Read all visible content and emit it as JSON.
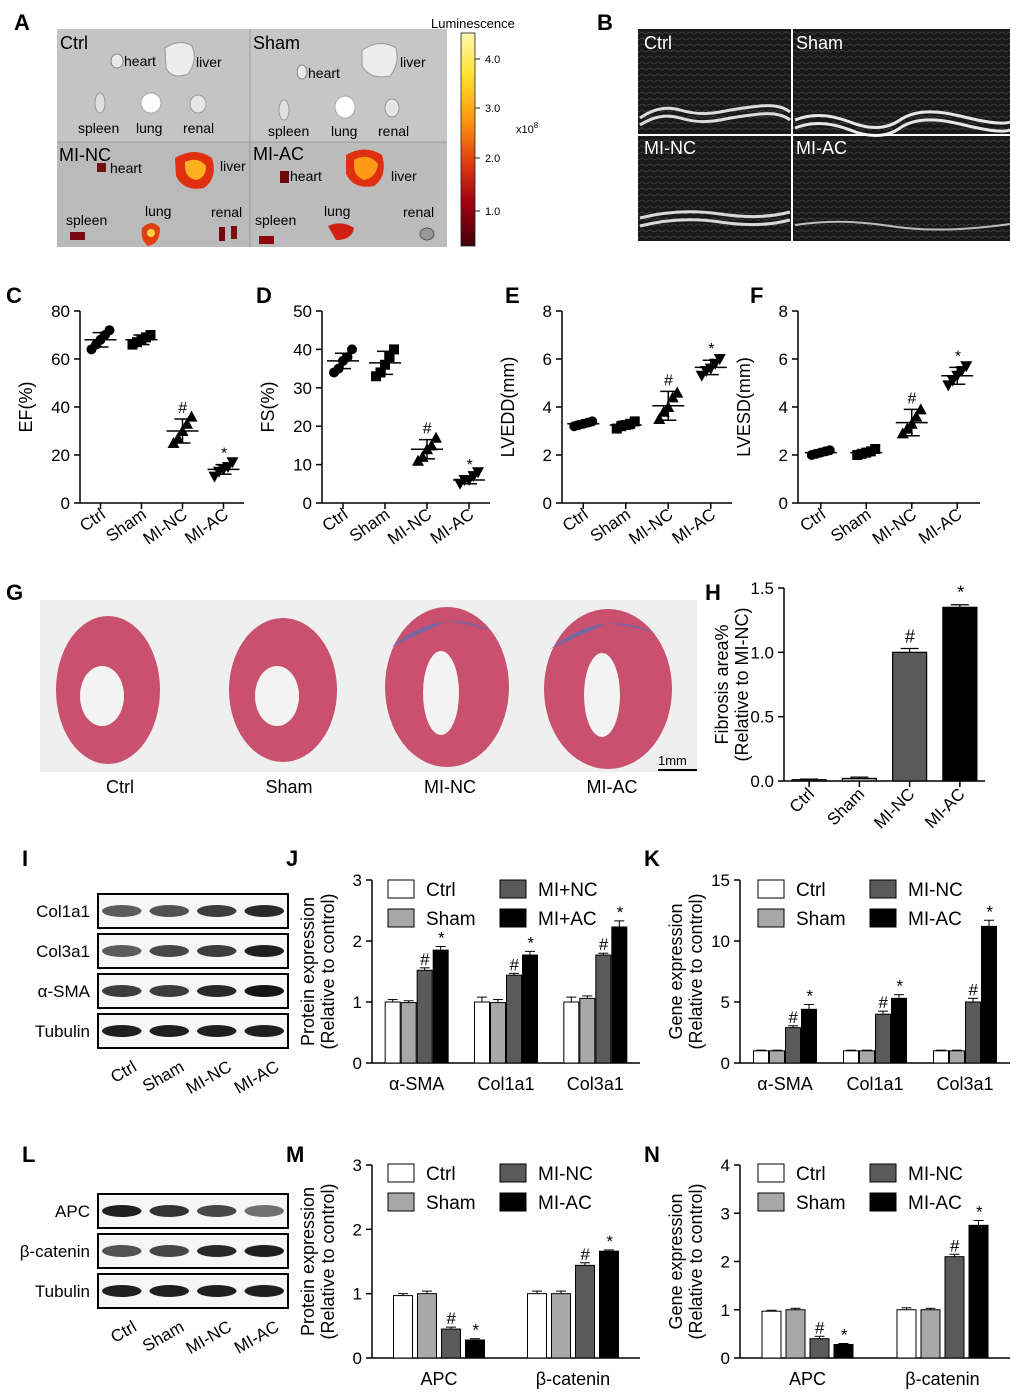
{
  "panel_letters": {
    "A": "A",
    "B": "B",
    "C": "C",
    "D": "D",
    "E": "E",
    "F": "F",
    "G": "G",
    "H": "H",
    "I": "I",
    "J": "J",
    "K": "K",
    "L": "L",
    "M": "M",
    "N": "N"
  },
  "panelA": {
    "quadrants": [
      {
        "title": "Ctrl",
        "organs": [
          "heart",
          "liver",
          "spleen",
          "lung",
          "renal"
        ]
      },
      {
        "title": "Sham",
        "organs": [
          "heart",
          "liver",
          "spleen",
          "lung",
          "renal"
        ]
      },
      {
        "title": "MI-NC",
        "organs": [
          "heart",
          "liver",
          "spleen",
          "lung",
          "renal"
        ]
      },
      {
        "title": "MI-AC",
        "organs": [
          "heart",
          "liver",
          "spleen",
          "lung",
          "renal"
        ]
      }
    ],
    "colorbar": {
      "title": "Luminescence",
      "ticks": [
        "4.0",
        "3.0",
        "2.0",
        "1.0"
      ],
      "multiplier": "x10",
      "exponent": "8",
      "colors": [
        "#fff8b0",
        "#ffe030",
        "#ff9a10",
        "#e04010",
        "#a00010",
        "#400008"
      ]
    }
  },
  "panelB": {
    "labels": [
      "Ctrl",
      "Sham",
      "MI-NC",
      "MI-AC"
    ]
  },
  "panelG": {
    "labels": [
      "Ctrl",
      "Sham",
      "MI-NC",
      "MI-AC"
    ],
    "scalebar": "1mm"
  },
  "colors": {
    "ctrl": "#ffffff",
    "sham": "#a8a8a8",
    "nc": "#5a5a5a",
    "ac": "#000000",
    "tissue": "#c9506e",
    "fibrosis": "#5a6fb8"
  },
  "chart_data": [
    {
      "id": "C",
      "type": "scatter",
      "ylabel": "EF(%)",
      "ylim": [
        0,
        80
      ],
      "yticks": [
        "0",
        "20",
        "40",
        "60",
        "80"
      ],
      "categories": [
        "Ctrl",
        "Sham",
        "MI-NC",
        "MI-AC"
      ],
      "means": [
        68,
        68,
        30,
        14
      ],
      "sd": [
        3,
        2,
        5,
        2
      ],
      "markers": [
        "circle",
        "square",
        "triangle",
        "triangle-down"
      ],
      "sig": [
        "",
        "",
        "#",
        "*"
      ],
      "points": [
        [
          64,
          66,
          68,
          70,
          72
        ],
        [
          66,
          67,
          68,
          69,
          70
        ],
        [
          25,
          27,
          30,
          33,
          36
        ],
        [
          11,
          13,
          14,
          15,
          17
        ]
      ]
    },
    {
      "id": "D",
      "type": "scatter",
      "ylabel": "FS(%)",
      "ylim": [
        0,
        50
      ],
      "yticks": [
        "0",
        "10",
        "20",
        "30",
        "40",
        "50"
      ],
      "categories": [
        "Ctrl",
        "Sham",
        "MI-NC",
        "MI-AC"
      ],
      "means": [
        37,
        36.5,
        14,
        6
      ],
      "sd": [
        2,
        3,
        2.5,
        1
      ],
      "markers": [
        "circle",
        "square",
        "triangle",
        "triangle-down"
      ],
      "sig": [
        "",
        "",
        "#",
        "*"
      ],
      "points": [
        [
          34,
          35,
          37,
          38,
          40
        ],
        [
          33,
          34,
          36,
          38,
          40
        ],
        [
          11,
          12,
          14,
          15,
          17
        ],
        [
          5,
          6,
          6,
          7,
          8
        ]
      ]
    },
    {
      "id": "E",
      "type": "scatter",
      "ylabel": "LVEDD(mm)",
      "ylim": [
        0,
        8
      ],
      "yticks": [
        "0",
        "2",
        "4",
        "6",
        "8"
      ],
      "categories": [
        "Ctrl",
        "Sham",
        "MI-NC",
        "MI-AC"
      ],
      "means": [
        3.3,
        3.25,
        4.05,
        5.65
      ],
      "sd": [
        0.1,
        0.15,
        0.6,
        0.3
      ],
      "markers": [
        "circle",
        "square",
        "triangle",
        "triangle-down"
      ],
      "sig": [
        "",
        "",
        "#",
        "*"
      ],
      "points": [
        [
          3.2,
          3.25,
          3.3,
          3.35,
          3.4
        ],
        [
          3.1,
          3.2,
          3.25,
          3.3,
          3.4
        ],
        [
          3.5,
          3.8,
          4.0,
          4.4,
          4.6
        ],
        [
          5.3,
          5.5,
          5.6,
          5.8,
          6.0
        ]
      ]
    },
    {
      "id": "F",
      "type": "scatter",
      "ylabel": "LVESD(mm)",
      "ylim": [
        0,
        8
      ],
      "yticks": [
        "0",
        "2",
        "4",
        "6",
        "8"
      ],
      "categories": [
        "Ctrl",
        "Sham",
        "MI-NC",
        "MI-AC"
      ],
      "means": [
        2.1,
        2.1,
        3.35,
        5.3
      ],
      "sd": [
        0.1,
        0.1,
        0.55,
        0.35
      ],
      "markers": [
        "circle",
        "square",
        "triangle",
        "triangle-down"
      ],
      "sig": [
        "",
        "",
        "#",
        "*"
      ],
      "points": [
        [
          2.0,
          2.05,
          2.1,
          2.15,
          2.2
        ],
        [
          2.0,
          2.05,
          2.1,
          2.15,
          2.25
        ],
        [
          2.9,
          3.1,
          3.3,
          3.6,
          3.9
        ],
        [
          4.9,
          5.1,
          5.3,
          5.5,
          5.7
        ]
      ]
    },
    {
      "id": "H",
      "type": "bar",
      "ylabel": "Fibrosis area%",
      "ylabel2": "(Relative to MI-NC)",
      "ylim": [
        0,
        1.5
      ],
      "yticks": [
        "0.0",
        "0.5",
        "1.0",
        "1.5"
      ],
      "categories": [
        "Ctrl",
        "Sham",
        "MI-NC",
        "MI-AC"
      ],
      "values": [
        0.01,
        0.02,
        1.0,
        1.35
      ],
      "errors": [
        0.005,
        0.01,
        0.03,
        0.02
      ],
      "sig": [
        "",
        "",
        "#",
        "*"
      ]
    },
    {
      "id": "J",
      "type": "bar",
      "ylabel": "Protein expression",
      "ylabel2": "(Relative to control)",
      "ylim": [
        0,
        3
      ],
      "yticks": [
        "0",
        "1",
        "2",
        "3"
      ],
      "categories": [
        "α-SMA",
        "Col1a1",
        "Col3a1"
      ],
      "series": [
        {
          "name": "Ctrl",
          "values": [
            1.0,
            1.0,
            1.0
          ],
          "errors": [
            0.04,
            0.08,
            0.08
          ],
          "sig": [
            "",
            "",
            ""
          ]
        },
        {
          "name": "Sham",
          "values": [
            0.99,
            0.99,
            1.06
          ],
          "errors": [
            0.03,
            0.05,
            0.04
          ],
          "sig": [
            "",
            "",
            ""
          ]
        },
        {
          "name": "MI+NC",
          "values": [
            1.52,
            1.44,
            1.77
          ],
          "errors": [
            0.04,
            0.03,
            0.03
          ],
          "sig": [
            "#",
            "#",
            "#"
          ]
        },
        {
          "name": "MI+AC",
          "values": [
            1.85,
            1.77,
            2.23
          ],
          "errors": [
            0.06,
            0.06,
            0.1
          ],
          "sig": [
            "*",
            "*",
            "*"
          ]
        }
      ]
    },
    {
      "id": "K",
      "type": "bar",
      "ylabel": "Gene expression",
      "ylabel2": "(Relative to control)",
      "ylim": [
        0,
        15
      ],
      "yticks": [
        "0",
        "5",
        "10",
        "15"
      ],
      "categories": [
        "α-SMA",
        "Col1a1",
        "Col3a1"
      ],
      "series": [
        {
          "name": "Ctrl",
          "values": [
            1.0,
            1.0,
            1.0
          ],
          "errors": [
            0.05,
            0.05,
            0.05
          ],
          "sig": [
            "",
            "",
            ""
          ]
        },
        {
          "name": "Sham",
          "values": [
            1.0,
            1.0,
            1.0
          ],
          "errors": [
            0.05,
            0.05,
            0.05
          ],
          "sig": [
            "",
            "",
            ""
          ]
        },
        {
          "name": "MI-NC",
          "values": [
            2.9,
            4.0,
            5.0
          ],
          "errors": [
            0.15,
            0.25,
            0.3
          ],
          "sig": [
            "#",
            "#",
            "#"
          ]
        },
        {
          "name": "MI-AC",
          "values": [
            4.4,
            5.3,
            11.2
          ],
          "errors": [
            0.4,
            0.3,
            0.5
          ],
          "sig": [
            "*",
            "*",
            "*"
          ]
        }
      ]
    },
    {
      "id": "M",
      "type": "bar",
      "ylabel": "Protein expression",
      "ylabel2": "(Relative to control)",
      "ylim": [
        0,
        3
      ],
      "yticks": [
        "0",
        "1",
        "2",
        "3"
      ],
      "categories": [
        "APC",
        "β-catenin"
      ],
      "series": [
        {
          "name": "Ctrl",
          "values": [
            0.97,
            1.0
          ],
          "errors": [
            0.03,
            0.04
          ],
          "sig": [
            "",
            ""
          ]
        },
        {
          "name": "Sham",
          "values": [
            1.0,
            1.0
          ],
          "errors": [
            0.04,
            0.04
          ],
          "sig": [
            "",
            ""
          ]
        },
        {
          "name": "MI-NC",
          "values": [
            0.45,
            1.44
          ],
          "errors": [
            0.03,
            0.04
          ],
          "sig": [
            "#",
            "#"
          ]
        },
        {
          "name": "MI-AC",
          "values": [
            0.28,
            1.66
          ],
          "errors": [
            0.02,
            0.02
          ],
          "sig": [
            "*",
            "*"
          ]
        }
      ]
    },
    {
      "id": "N",
      "type": "bar",
      "ylabel": "Gene expression",
      "ylabel2": "(Relative to control)",
      "ylim": [
        0,
        4
      ],
      "yticks": [
        "0",
        "1",
        "2",
        "3",
        "4"
      ],
      "categories": [
        "APC",
        "β-catenin"
      ],
      "series": [
        {
          "name": "Ctrl",
          "values": [
            0.97,
            1.0
          ],
          "errors": [
            0.02,
            0.04
          ],
          "sig": [
            "",
            ""
          ]
        },
        {
          "name": "Sham",
          "values": [
            1.0,
            1.0
          ],
          "errors": [
            0.03,
            0.03
          ],
          "sig": [
            "",
            ""
          ]
        },
        {
          "name": "MI-NC",
          "values": [
            0.4,
            2.1
          ],
          "errors": [
            0.05,
            0.05
          ],
          "sig": [
            "#",
            "#"
          ]
        },
        {
          "name": "MI-AC",
          "values": [
            0.28,
            2.75
          ],
          "errors": [
            0.02,
            0.1
          ],
          "sig": [
            "*",
            "*"
          ]
        }
      ]
    }
  ],
  "blots": [
    {
      "id": "I",
      "rows": [
        "Col1a1",
        "Col3a1",
        "α-SMA",
        "Tubulin"
      ],
      "lanes": [
        "Ctrl",
        "Sham",
        "MI-NC",
        "MI-AC"
      ],
      "intensity": [
        [
          0.55,
          0.6,
          0.7,
          0.8
        ],
        [
          0.55,
          0.65,
          0.7,
          0.85
        ],
        [
          0.7,
          0.7,
          0.8,
          0.9
        ],
        [
          0.85,
          0.85,
          0.85,
          0.85
        ]
      ]
    },
    {
      "id": "L",
      "rows": [
        "APC",
        "β-catenin",
        "Tubulin"
      ],
      "lanes": [
        "Ctrl",
        "Sham",
        "MI-NC",
        "MI-AC"
      ],
      "intensity": [
        [
          0.85,
          0.75,
          0.65,
          0.45
        ],
        [
          0.6,
          0.65,
          0.8,
          0.85
        ],
        [
          0.85,
          0.85,
          0.85,
          0.85
        ]
      ]
    }
  ]
}
